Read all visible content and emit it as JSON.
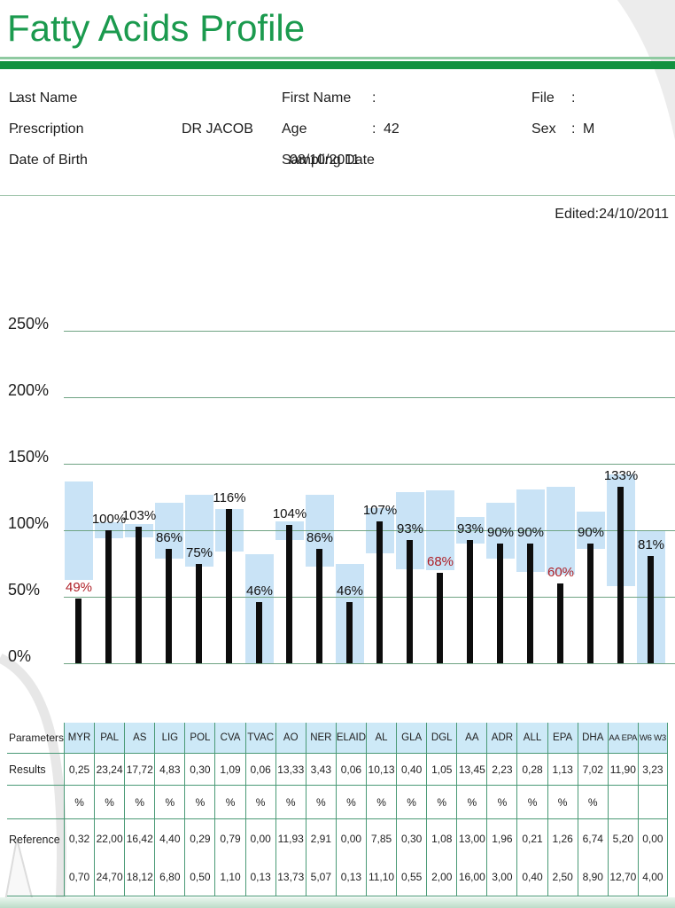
{
  "page": {
    "title": "Fatty Acids Profile",
    "edited": "Edited:24/10/2011"
  },
  "fields": {
    "colon": ":",
    "last_name": {
      "label": "Last Name",
      "value": ""
    },
    "first_name": {
      "label": "First Name",
      "value": ""
    },
    "file": {
      "label": "File",
      "value": ""
    },
    "prescription": {
      "label": "Prescription",
      "value": "DR JACOB"
    },
    "age": {
      "label": "Age",
      "value": "42"
    },
    "sex": {
      "label": "Sex",
      "value": "M"
    },
    "date_of_birth": {
      "label": "Date of Birth",
      "value": ""
    },
    "sampling_date": {
      "label": "Sampling Date",
      "value": "08/10/2011"
    }
  },
  "chart_data": {
    "type": "bar",
    "title": "",
    "xlabel": "",
    "ylabel": "",
    "unit": "%",
    "ylim": [
      0,
      250
    ],
    "grid": true,
    "ytick_values": [
      0,
      50,
      100,
      150,
      200,
      250
    ],
    "ytick_labels": [
      "0%",
      "50%",
      "100%",
      "150%",
      "200%",
      "250%"
    ],
    "categories": [
      "MYR",
      "PAL",
      "AS",
      "LIG",
      "POL",
      "CVA",
      "TVAC",
      "AO",
      "NER",
      "ELAID",
      "AL",
      "GLA",
      "DGL",
      "AA",
      "ADR",
      "ALL",
      "EPA",
      "DHA",
      "AA EPA",
      "W6 W3"
    ],
    "values_pct": [
      49,
      100,
      103,
      86,
      75,
      116,
      46,
      104,
      86,
      46,
      107,
      93,
      68,
      93,
      90,
      90,
      60,
      90,
      133,
      81
    ],
    "below_range_indices": [
      0,
      12,
      16
    ],
    "reference_bands_pct": [
      [
        63,
        137
      ],
      [
        94,
        106
      ],
      [
        95,
        105
      ],
      [
        79,
        121
      ],
      [
        73,
        127
      ],
      [
        84,
        116
      ],
      [
        0,
        82
      ],
      [
        93,
        107
      ],
      [
        73,
        127
      ],
      [
        0,
        75
      ],
      [
        83,
        117
      ],
      [
        71,
        129
      ],
      [
        70,
        130
      ],
      [
        90,
        110
      ],
      [
        79,
        121
      ],
      [
        69,
        131
      ],
      [
        67,
        133
      ],
      [
        86,
        114
      ],
      [
        58,
        142
      ],
      [
        0,
        100
      ]
    ]
  },
  "table": {
    "corner_label": "Parameters",
    "results_label": "Results",
    "reference_label": "Reference",
    "columns": [
      {
        "param": "MYR",
        "result": "0,25",
        "pct": "%",
        "ref_min": "0,32",
        "ref_max": "0,70"
      },
      {
        "param": "PAL",
        "result": "23,24",
        "pct": "%",
        "ref_min": "22,00",
        "ref_max": "24,70"
      },
      {
        "param": "AS",
        "result": "17,72",
        "pct": "%",
        "ref_min": "16,42",
        "ref_max": "18,12"
      },
      {
        "param": "LIG",
        "result": "4,83",
        "pct": "%",
        "ref_min": "4,40",
        "ref_max": "6,80"
      },
      {
        "param": "POL",
        "result": "0,30",
        "pct": "%",
        "ref_min": "0,29",
        "ref_max": "0,50"
      },
      {
        "param": "CVA",
        "result": "1,09",
        "pct": "%",
        "ref_min": "0,79",
        "ref_max": "1,10"
      },
      {
        "param": "TVAC",
        "result": "0,06",
        "pct": "%",
        "ref_min": "0,00",
        "ref_max": "0,13"
      },
      {
        "param": "AO",
        "result": "13,33",
        "pct": "%",
        "ref_min": "11,93",
        "ref_max": "13,73"
      },
      {
        "param": "NER",
        "result": "3,43",
        "pct": "%",
        "ref_min": "2,91",
        "ref_max": "5,07"
      },
      {
        "param": "ELAID",
        "result": "0,06",
        "pct": "%",
        "ref_min": "0,00",
        "ref_max": "0,13"
      },
      {
        "param": "AL",
        "result": "10,13",
        "pct": "%",
        "ref_min": "7,85",
        "ref_max": "11,10"
      },
      {
        "param": "GLA",
        "result": "0,40",
        "pct": "%",
        "ref_min": "0,30",
        "ref_max": "0,55"
      },
      {
        "param": "DGL",
        "result": "1,05",
        "pct": "%",
        "ref_min": "1,08",
        "ref_max": "2,00"
      },
      {
        "param": "AA",
        "result": "13,45",
        "pct": "%",
        "ref_min": "13,00",
        "ref_max": "16,00"
      },
      {
        "param": "ADR",
        "result": "2,23",
        "pct": "%",
        "ref_min": "1,96",
        "ref_max": "3,00"
      },
      {
        "param": "ALL",
        "result": "0,28",
        "pct": "%",
        "ref_min": "0,21",
        "ref_max": "0,40"
      },
      {
        "param": "EPA",
        "result": "1,13",
        "pct": "%",
        "ref_min": "1,26",
        "ref_max": "2,50"
      },
      {
        "param": "DHA",
        "result": "7,02",
        "pct": "%",
        "ref_min": "6,74",
        "ref_max": "8,90"
      },
      {
        "param": "AA EPA",
        "result": "11,90",
        "pct": "",
        "ref_min": "5,20",
        "ref_max": "12,70"
      },
      {
        "param": "W6 W3",
        "result": "3,23",
        "pct": "",
        "ref_min": "0,00",
        "ref_max": "4,00"
      }
    ]
  },
  "colors": {
    "title_green": "#1b9a4e",
    "rule_green_dark": "#12913f",
    "rule_green_light": "#8fcaa1",
    "hairline_green": "#a3c7ae",
    "grid_green": "#6fa383",
    "table_border_green": "#4a9a76",
    "header_cell_blue": "#cde9f7",
    "reference_band_blue": "#c9e3f6",
    "bar_black": "#0d0d0d",
    "alert_red": "#ae1e25",
    "footer_strip_green": "#bcdcc8",
    "watermark_gray": "#e9e9e9"
  }
}
